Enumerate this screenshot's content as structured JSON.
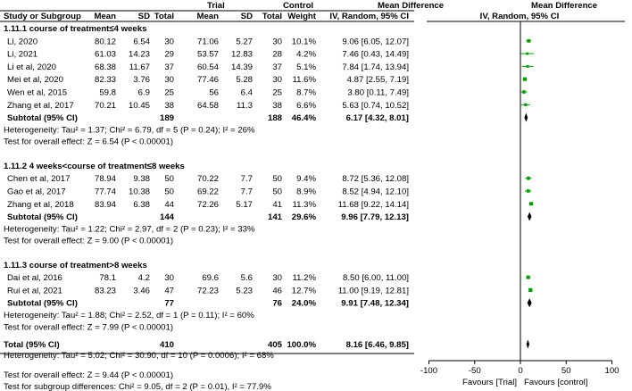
{
  "header": {
    "trial": "Trial",
    "control": "Control",
    "md_title_1": "Mean Difference",
    "md_title_2": "Mean Difference",
    "columns": [
      "Study or Subgroup",
      "Mean",
      "SD",
      "Total",
      "Mean",
      "SD",
      "Total",
      "Weight",
      "IV, Random, 95% CI",
      "IV, Random, 95% CI"
    ]
  },
  "groups": [
    {
      "title": "1.11.1 course of treatment≤4 weeks",
      "studies": [
        {
          "name": "Li, 2020",
          "t_mean": "80.12",
          "t_sd": "6.54",
          "t_n": "30",
          "c_mean": "71.06",
          "c_sd": "5.27",
          "c_n": "30",
          "weight": "10.1%",
          "ci": "9.06 [6.05, 12.07]",
          "md": 9.06,
          "lo": 6.05,
          "hi": 12.07
        },
        {
          "name": "Li, 2021",
          "t_mean": "61.03",
          "t_sd": "14.23",
          "t_n": "29",
          "c_mean": "53.57",
          "c_sd": "12.83",
          "c_n": "28",
          "weight": "4.2%",
          "ci": "7.46 [0.43, 14.49]",
          "md": 7.46,
          "lo": 0.43,
          "hi": 14.49
        },
        {
          "name": "Li et al, 2020",
          "t_mean": "68.38",
          "t_sd": "11.67",
          "t_n": "37",
          "c_mean": "60.54",
          "c_sd": "14.39",
          "c_n": "37",
          "weight": "5.1%",
          "ci": "7.84 [1.74, 13.94]",
          "md": 7.84,
          "lo": 1.74,
          "hi": 13.94
        },
        {
          "name": "Mei et al, 2020",
          "t_mean": "82.33",
          "t_sd": "3.76",
          "t_n": "30",
          "c_mean": "77.46",
          "c_sd": "5.28",
          "c_n": "30",
          "weight": "11.6%",
          "ci": "4.87 [2.55, 7.19]",
          "md": 4.87,
          "lo": 2.55,
          "hi": 7.19
        },
        {
          "name": "Wen et al, 2015",
          "t_mean": "59.8",
          "t_sd": "6.9",
          "t_n": "25",
          "c_mean": "56",
          "c_sd": "6.4",
          "c_n": "25",
          "weight": "8.7%",
          "ci": "3.80 [0.11, 7.49]",
          "md": 3.8,
          "lo": 0.11,
          "hi": 7.49
        },
        {
          "name": "Zhang et al, 2017",
          "t_mean": "70.21",
          "t_sd": "10.45",
          "t_n": "38",
          "c_mean": "64.58",
          "c_sd": "11.3",
          "c_n": "38",
          "weight": "6.6%",
          "ci": "5.63 [0.74, 10.52]",
          "md": 5.63,
          "lo": 0.74,
          "hi": 10.52
        }
      ],
      "subtotal": {
        "label": "Subtotal (95% CI)",
        "t_n": "189",
        "c_n": "188",
        "weight": "46.4%",
        "ci": "6.17 [4.32, 8.01]",
        "md": 6.17,
        "lo": 4.32,
        "hi": 8.01
      },
      "heterogeneity": "Heterogeneity: Tau² = 1.37; Chi² = 6.79, df = 5 (P = 0.24); I² = 26%",
      "overall": "Test for overall effect: Z = 6.54 (P < 0.00001)"
    },
    {
      "title": "1.11.2 4 weeks<course of treatment≤8 weeks",
      "studies": [
        {
          "name": "Chen et al, 2017",
          "t_mean": "78.94",
          "t_sd": "9.38",
          "t_n": "50",
          "c_mean": "70.22",
          "c_sd": "7.7",
          "c_n": "50",
          "weight": "9.4%",
          "ci": "8.72 [5.36, 12.08]",
          "md": 8.72,
          "lo": 5.36,
          "hi": 12.08
        },
        {
          "name": "Gao et al, 2017",
          "t_mean": "77.74",
          "t_sd": "10.38",
          "t_n": "50",
          "c_mean": "69.22",
          "c_sd": "7.7",
          "c_n": "50",
          "weight": "8.9%",
          "ci": "8.52 [4.94, 12.10]",
          "md": 8.52,
          "lo": 4.94,
          "hi": 12.1
        },
        {
          "name": "Zhang et al, 2018",
          "t_mean": "83.94",
          "t_sd": "6.38",
          "t_n": "44",
          "c_mean": "72.26",
          "c_sd": "5.17",
          "c_n": "41",
          "weight": "11.3%",
          "ci": "11.68 [9.22, 14.14]",
          "md": 11.68,
          "lo": 9.22,
          "hi": 14.14
        }
      ],
      "subtotal": {
        "label": "Subtotal (95% CI)",
        "t_n": "144",
        "c_n": "141",
        "weight": "29.6%",
        "ci": "9.96 [7.79, 12.13]",
        "md": 9.96,
        "lo": 7.79,
        "hi": 12.13
      },
      "heterogeneity": "Heterogeneity: Tau² = 1.22; Chi² = 2.97, df = 2 (P = 0.23); I² = 33%",
      "overall": "Test for overall effect: Z = 9.00 (P < 0.00001)"
    },
    {
      "title": "1.11.3 course of treatment>8 weeks",
      "studies": [
        {
          "name": "Dai et al, 2016",
          "t_mean": "78.1",
          "t_sd": "4.2",
          "t_n": "30",
          "c_mean": "69.6",
          "c_sd": "5.6",
          "c_n": "30",
          "weight": "11.2%",
          "ci": "8.50 [6.00, 11.00]",
          "md": 8.5,
          "lo": 6.0,
          "hi": 11.0
        },
        {
          "name": "Rui et al, 2021",
          "t_mean": "83.23",
          "t_sd": "3.46",
          "t_n": "47",
          "c_mean": "72.23",
          "c_sd": "5.23",
          "c_n": "46",
          "weight": "12.7%",
          "ci": "11.00 [9.19, 12.81]",
          "md": 11.0,
          "lo": 9.19,
          "hi": 12.81
        }
      ],
      "subtotal": {
        "label": "Subtotal (95% CI)",
        "t_n": "77",
        "c_n": "76",
        "weight": "24.0%",
        "ci": "9.91 [7.48, 12.34]",
        "md": 9.91,
        "lo": 7.48,
        "hi": 12.34
      },
      "heterogeneity": "Heterogeneity: Tau² = 1.88; Chi² = 2.52, df = 1 (P = 0.11); I² = 60%",
      "overall": "Test for overall effect: Z = 7.99 (P < 0.00001)"
    }
  ],
  "total": {
    "label": "Total (95% CI)",
    "t_n": "410",
    "c_n": "405",
    "weight": "100.0%",
    "ci": "8.16 [6.46, 9.85]",
    "md": 8.16,
    "lo": 6.46,
    "hi": 9.85
  },
  "footer": {
    "heterogeneity": "Heterogeneity: Tau² = 5.02; Chi² = 30.90, df = 10 (P = 0.0006); I² = 68%",
    "overall": "Test for overall effect: Z = 9.44 (P < 0.00001)",
    "subgroup": "Test for subgroup differences: Chi² = 9.05, df = 2 (P = 0.01), I² = 77.9%"
  },
  "axis": {
    "ticks": [
      -100,
      -50,
      0,
      50,
      100
    ],
    "tick_labels": [
      "-100",
      "-50",
      "0",
      "50",
      "100"
    ],
    "favours_left": "Favours [Trial]",
    "favours_right": "Favours [control]"
  },
  "colors": {
    "study_marker": "#00a000",
    "diamond": "#000000",
    "line": "#000000"
  },
  "chart_data": {
    "type": "forest",
    "xlim": [
      -100,
      100
    ],
    "xlabel_left": "Favours [Trial]",
    "xlabel_right": "Favours [control]",
    "studies": [
      {
        "name": "Li, 2020",
        "md": 9.06,
        "lo": 6.05,
        "hi": 12.07,
        "weight": 10.1
      },
      {
        "name": "Li, 2021",
        "md": 7.46,
        "lo": 0.43,
        "hi": 14.49,
        "weight": 4.2
      },
      {
        "name": "Li et al, 2020",
        "md": 7.84,
        "lo": 1.74,
        "hi": 13.94,
        "weight": 5.1
      },
      {
        "name": "Mei et al, 2020",
        "md": 4.87,
        "lo": 2.55,
        "hi": 7.19,
        "weight": 11.6
      },
      {
        "name": "Wen et al, 2015",
        "md": 3.8,
        "lo": 0.11,
        "hi": 7.49,
        "weight": 8.7
      },
      {
        "name": "Zhang et al, 2017",
        "md": 5.63,
        "lo": 0.74,
        "hi": 10.52,
        "weight": 6.6
      },
      {
        "name": "Chen et al, 2017",
        "md": 8.72,
        "lo": 5.36,
        "hi": 12.08,
        "weight": 9.4
      },
      {
        "name": "Gao et al, 2017",
        "md": 8.52,
        "lo": 4.94,
        "hi": 12.1,
        "weight": 8.9
      },
      {
        "name": "Zhang et al, 2018",
        "md": 11.68,
        "lo": 9.22,
        "hi": 14.14,
        "weight": 11.3
      },
      {
        "name": "Dai et al, 2016",
        "md": 8.5,
        "lo": 6.0,
        "hi": 11.0,
        "weight": 11.2
      },
      {
        "name": "Rui et al, 2021",
        "md": 11.0,
        "lo": 9.19,
        "hi": 12.81,
        "weight": 12.7
      }
    ],
    "subtotals": [
      {
        "md": 6.17,
        "lo": 4.32,
        "hi": 8.01
      },
      {
        "md": 9.96,
        "lo": 7.79,
        "hi": 12.13
      },
      {
        "md": 9.91,
        "lo": 7.48,
        "hi": 12.34
      }
    ],
    "total": {
      "md": 8.16,
      "lo": 6.46,
      "hi": 9.85
    }
  }
}
